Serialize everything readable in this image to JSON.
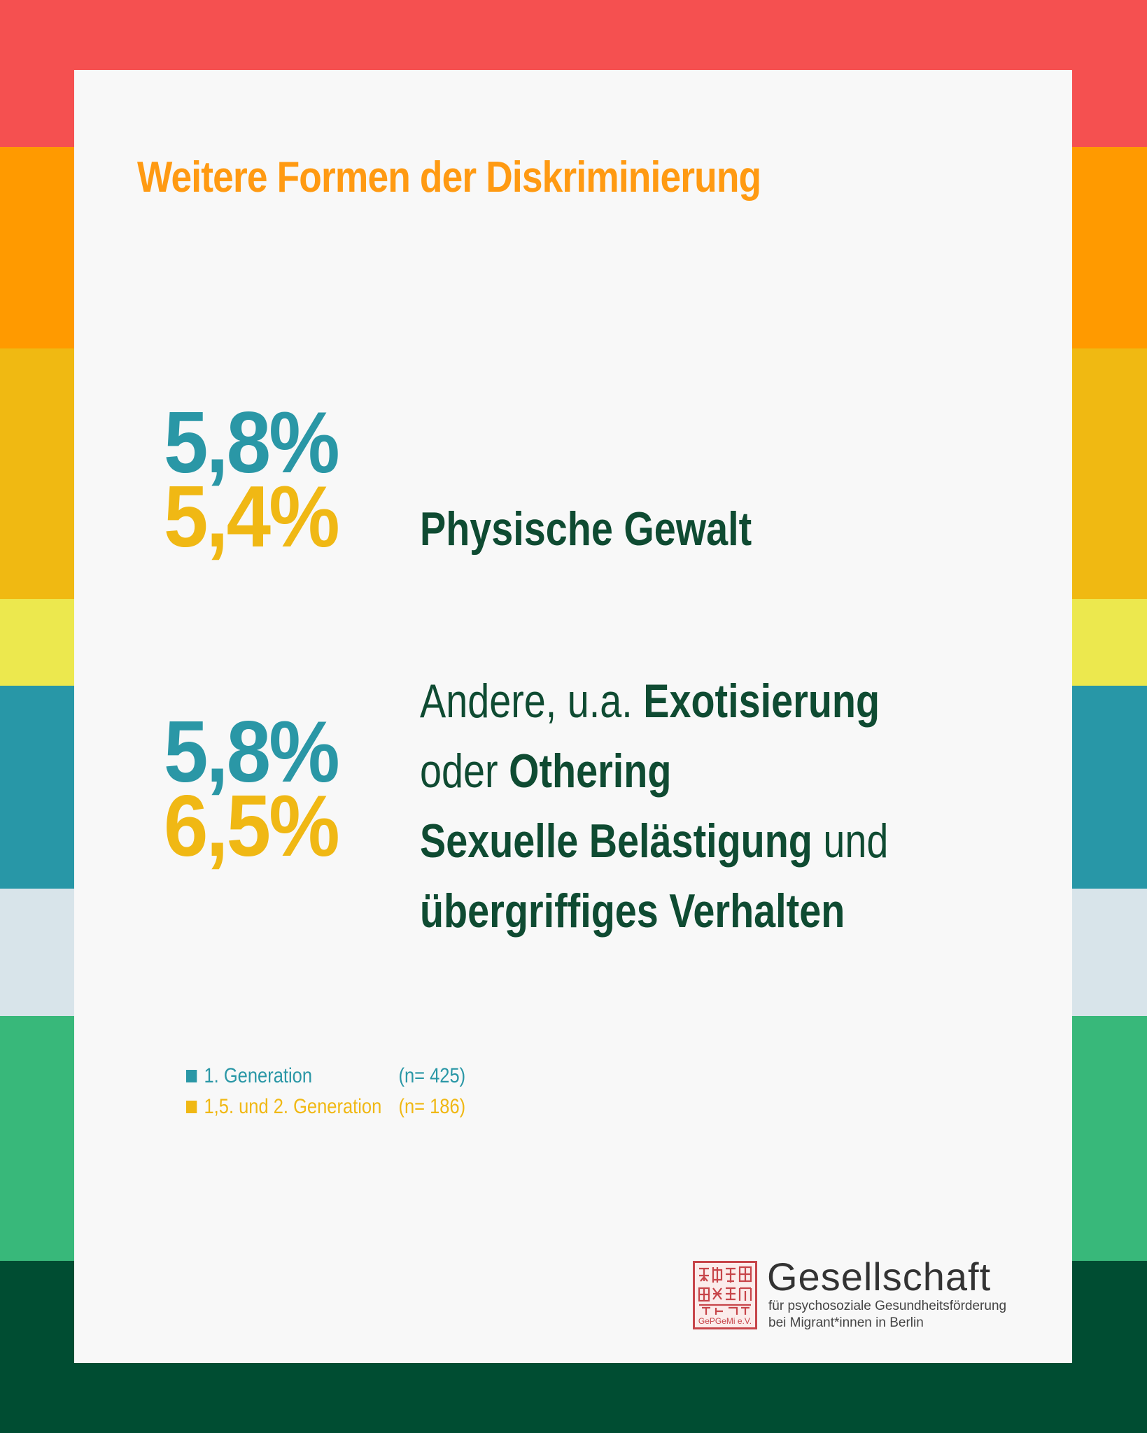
{
  "colors": {
    "stripe_red": "#f55050",
    "stripe_orange": "#ff9a00",
    "stripe_amber": "#f0b912",
    "stripe_lightyellow": "#ece84e",
    "stripe_teal": "#2897a7",
    "stripe_lightgray": "#d8e4ea",
    "stripe_green": "#38b87a",
    "stripe_darkgreen": "#004d32",
    "title": "#ff9a12",
    "first_generation": "#2a97a6",
    "second_generation": "#f0b814",
    "label_text": "#0f4b32",
    "seal": "#c7454a"
  },
  "title": "Weitere Formen der Diskriminierung",
  "stats": [
    {
      "first_generation": "5,8%",
      "second_generation": "5,4%",
      "label": "Physische Gewalt"
    },
    {
      "first_generation": "5,8%",
      "second_generation": "6,5%",
      "label_parts": {
        "andere_prefix": "Andere, u.a. ",
        "exotisierung": "Exotisierung",
        "oder": "oder ",
        "othering": "Othering",
        "sexuelle": "Sexuelle Belästigung",
        "und": " und",
        "uebergriffiges": "übergriffiges Verhalten"
      }
    }
  ],
  "legend": [
    {
      "label": "1.  Generation",
      "n": "(n= 425)"
    },
    {
      "label": "1,5. und 2.  Generation",
      "n": "(n= 186)"
    }
  ],
  "organization": {
    "seal_text": "GePGeMi e.V.",
    "name": "Gesellschaft",
    "subtitle_line1": "für psychosoziale Gesundheitsförderung",
    "subtitle_line2": "bei Migrant*innen in Berlin"
  }
}
